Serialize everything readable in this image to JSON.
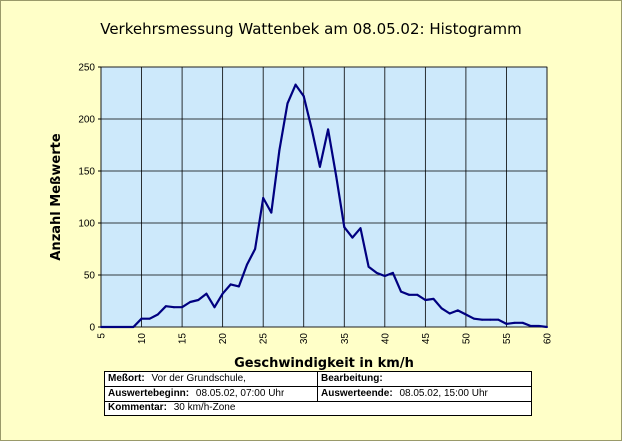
{
  "chart_data": {
    "type": "line",
    "title": "Verkehrsmessung Wattenbek am 08.05.02: Histogramm",
    "xlabel": "Geschwindigkeit in km/h",
    "ylabel": "Anzahl Meßwerte",
    "xlim": [
      5,
      60
    ],
    "ylim": [
      0,
      250
    ],
    "xticks": [
      5,
      10,
      15,
      20,
      25,
      30,
      35,
      40,
      45,
      50,
      55,
      60
    ],
    "yticks": [
      0,
      50,
      100,
      150,
      200,
      250
    ],
    "grid": true,
    "colors": {
      "plot_bg": "#cde9fb",
      "line": "#000080",
      "frame_bg": "#ffffc8"
    },
    "x": [
      5,
      6,
      7,
      8,
      9,
      10,
      11,
      12,
      13,
      14,
      15,
      16,
      17,
      18,
      19,
      20,
      21,
      22,
      23,
      24,
      25,
      26,
      27,
      28,
      29,
      30,
      31,
      32,
      33,
      34,
      35,
      36,
      37,
      38,
      39,
      40,
      41,
      42,
      43,
      44,
      45,
      46,
      47,
      48,
      49,
      50,
      51,
      52,
      53,
      54,
      55,
      56,
      57,
      58,
      59,
      60
    ],
    "values": [
      0,
      0,
      0,
      0,
      0,
      8,
      8,
      12,
      20,
      19,
      19,
      24,
      26,
      32,
      19,
      32,
      41,
      39,
      60,
      75,
      124,
      110,
      170,
      215,
      233,
      222,
      190,
      154,
      190,
      145,
      96,
      86,
      95,
      58,
      52,
      49,
      52,
      34,
      31,
      31,
      26,
      27,
      18,
      13,
      16,
      12,
      8,
      7,
      7,
      7,
      3,
      4,
      4,
      1,
      1,
      0
    ]
  },
  "info_table": {
    "messort_label": "Meßort:",
    "messort_value": "Vor der Grundschule,",
    "bearbeitung_label": "Bearbeitung:",
    "bearbeitung_value": "",
    "beginn_label": "Auswertebeginn:",
    "beginn_value": "08.05.02, 07:00 Uhr",
    "ende_label": "Auswerteende:",
    "ende_value": "08.05.02, 15:00 Uhr",
    "kommentar_label": "Kommentar:",
    "kommentar_value": "30 km/h-Zone"
  }
}
